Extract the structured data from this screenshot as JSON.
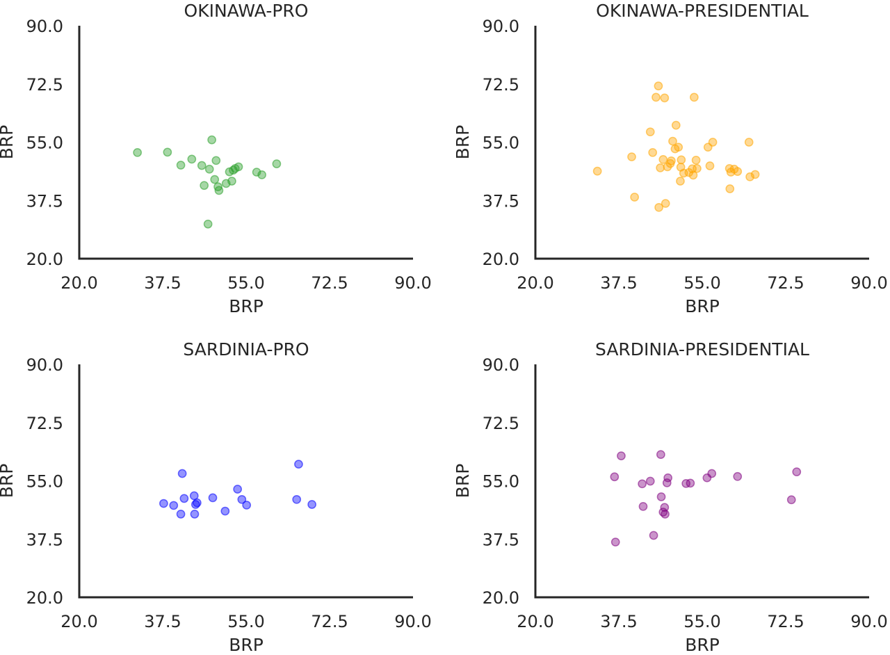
{
  "chart_data": [
    {
      "type": "scatter",
      "title": "OKINAWA-PRO",
      "xlabel": "BRP",
      "ylabel": "BRP",
      "xlim": [
        20,
        90
      ],
      "ylim": [
        20,
        90
      ],
      "xticks": [
        "20.0",
        "37.5",
        "55.0",
        "72.5",
        "90.0"
      ],
      "yticks": [
        "20.0",
        "37.5",
        "55.0",
        "72.5",
        "90.0"
      ],
      "color": "#2ca02c",
      "grid": false,
      "points": [
        {
          "x": 32.2,
          "y": 51.9
        },
        {
          "x": 38.5,
          "y": 52.0
        },
        {
          "x": 41.3,
          "y": 48.1
        },
        {
          "x": 43.6,
          "y": 49.9
        },
        {
          "x": 45.7,
          "y": 48.0
        },
        {
          "x": 47.3,
          "y": 46.9
        },
        {
          "x": 48.7,
          "y": 49.5
        },
        {
          "x": 47.8,
          "y": 55.7
        },
        {
          "x": 46.2,
          "y": 42.0
        },
        {
          "x": 48.4,
          "y": 43.8
        },
        {
          "x": 49.1,
          "y": 41.6
        },
        {
          "x": 49.3,
          "y": 40.5
        },
        {
          "x": 50.8,
          "y": 42.6
        },
        {
          "x": 52.0,
          "y": 43.3
        },
        {
          "x": 51.5,
          "y": 46.1
        },
        {
          "x": 52.3,
          "y": 46.6
        },
        {
          "x": 52.7,
          "y": 47.1
        },
        {
          "x": 53.4,
          "y": 47.6
        },
        {
          "x": 57.2,
          "y": 46.0
        },
        {
          "x": 58.3,
          "y": 45.2
        },
        {
          "x": 61.4,
          "y": 48.5
        },
        {
          "x": 47.0,
          "y": 30.4
        }
      ]
    },
    {
      "type": "scatter",
      "title": "OKINAWA-PRESIDENTIAL",
      "xlabel": "BRP",
      "ylabel": "BRP",
      "xlim": [
        20,
        90
      ],
      "ylim": [
        20,
        90
      ],
      "xticks": [
        "20.0",
        "37.5",
        "55.0",
        "72.5",
        "90.0"
      ],
      "yticks": [
        "20.0",
        "37.5",
        "55.0",
        "72.5",
        "90.0"
      ],
      "color": "#ffa500",
      "grid": false,
      "points": [
        {
          "x": 45.8,
          "y": 71.9
        },
        {
          "x": 45.3,
          "y": 68.5
        },
        {
          "x": 47.1,
          "y": 68.3
        },
        {
          "x": 53.3,
          "y": 68.5
        },
        {
          "x": 49.5,
          "y": 60.1
        },
        {
          "x": 44.1,
          "y": 58.1
        },
        {
          "x": 48.8,
          "y": 55.3
        },
        {
          "x": 49.3,
          "y": 53.0
        },
        {
          "x": 50.0,
          "y": 53.5
        },
        {
          "x": 56.2,
          "y": 53.5
        },
        {
          "x": 57.2,
          "y": 55.0
        },
        {
          "x": 64.8,
          "y": 55.0
        },
        {
          "x": 40.2,
          "y": 50.6
        },
        {
          "x": 44.6,
          "y": 51.9
        },
        {
          "x": 46.8,
          "y": 49.8
        },
        {
          "x": 48.5,
          "y": 49.4
        },
        {
          "x": 48.3,
          "y": 48.6
        },
        {
          "x": 50.6,
          "y": 49.7
        },
        {
          "x": 53.7,
          "y": 49.6
        },
        {
          "x": 46.2,
          "y": 47.3
        },
        {
          "x": 47.7,
          "y": 47.6
        },
        {
          "x": 50.5,
          "y": 47.5
        },
        {
          "x": 51.1,
          "y": 45.7
        },
        {
          "x": 52.2,
          "y": 45.9
        },
        {
          "x": 52.9,
          "y": 47.0
        },
        {
          "x": 53.9,
          "y": 47.1
        },
        {
          "x": 53.1,
          "y": 45.1
        },
        {
          "x": 56.6,
          "y": 47.9
        },
        {
          "x": 60.7,
          "y": 47.1
        },
        {
          "x": 61.0,
          "y": 46.0
        },
        {
          "x": 61.7,
          "y": 46.9
        },
        {
          "x": 62.4,
          "y": 46.2
        },
        {
          "x": 65.0,
          "y": 44.6
        },
        {
          "x": 66.1,
          "y": 45.3
        },
        {
          "x": 50.4,
          "y": 43.3
        },
        {
          "x": 60.8,
          "y": 41.0
        },
        {
          "x": 33.0,
          "y": 46.3
        },
        {
          "x": 40.8,
          "y": 38.5
        },
        {
          "x": 47.3,
          "y": 36.6
        },
        {
          "x": 45.9,
          "y": 35.4
        }
      ]
    },
    {
      "type": "scatter",
      "title": "SARDINIA-PRO",
      "xlabel": "BRP",
      "ylabel": "BRP",
      "xlim": [
        20,
        90
      ],
      "ylim": [
        20,
        90
      ],
      "xticks": [
        "20.0",
        "37.5",
        "55.0",
        "72.5",
        "90.0"
      ],
      "yticks": [
        "20.0",
        "37.5",
        "55.0",
        "72.5",
        "90.0"
      ],
      "color": "#0000ff",
      "grid": false,
      "points": [
        {
          "x": 37.7,
          "y": 48.2
        },
        {
          "x": 39.8,
          "y": 47.6
        },
        {
          "x": 41.3,
          "y": 45.0
        },
        {
          "x": 41.6,
          "y": 57.2
        },
        {
          "x": 42.0,
          "y": 49.7
        },
        {
          "x": 44.1,
          "y": 50.5
        },
        {
          "x": 44.4,
          "y": 47.9
        },
        {
          "x": 44.7,
          "y": 48.4
        },
        {
          "x": 44.2,
          "y": 45.0
        },
        {
          "x": 48.0,
          "y": 49.9
        },
        {
          "x": 50.6,
          "y": 45.9
        },
        {
          "x": 53.2,
          "y": 52.5
        },
        {
          "x": 54.1,
          "y": 49.4
        },
        {
          "x": 55.1,
          "y": 47.7
        },
        {
          "x": 65.6,
          "y": 49.4
        },
        {
          "x": 66.0,
          "y": 60.0
        },
        {
          "x": 68.8,
          "y": 47.9
        }
      ]
    },
    {
      "type": "scatter",
      "title": "SARDINIA-PRESIDENTIAL",
      "xlabel": "BRP",
      "ylabel": "BRP",
      "xlim": [
        20,
        90
      ],
      "ylim": [
        20,
        90
      ],
      "xticks": [
        "20.0",
        "37.5",
        "55.0",
        "72.5",
        "90.0"
      ],
      "yticks": [
        "20.0",
        "37.5",
        "55.0",
        "72.5",
        "90.0"
      ],
      "color": "#800080",
      "grid": false,
      "points": [
        {
          "x": 38.0,
          "y": 62.5
        },
        {
          "x": 46.3,
          "y": 62.9
        },
        {
          "x": 36.6,
          "y": 56.2
        },
        {
          "x": 42.4,
          "y": 54.1
        },
        {
          "x": 44.1,
          "y": 54.9
        },
        {
          "x": 47.6,
          "y": 54.4
        },
        {
          "x": 47.8,
          "y": 55.9
        },
        {
          "x": 51.6,
          "y": 54.2
        },
        {
          "x": 52.5,
          "y": 54.3
        },
        {
          "x": 56.0,
          "y": 55.9
        },
        {
          "x": 57.0,
          "y": 57.2
        },
        {
          "x": 62.4,
          "y": 56.3
        },
        {
          "x": 74.8,
          "y": 57.7
        },
        {
          "x": 73.7,
          "y": 49.3
        },
        {
          "x": 46.4,
          "y": 50.2
        },
        {
          "x": 42.6,
          "y": 47.3
        },
        {
          "x": 47.1,
          "y": 47.0
        },
        {
          "x": 46.8,
          "y": 45.6
        },
        {
          "x": 47.2,
          "y": 45.0
        },
        {
          "x": 44.8,
          "y": 38.6
        },
        {
          "x": 36.8,
          "y": 36.6
        }
      ]
    }
  ]
}
